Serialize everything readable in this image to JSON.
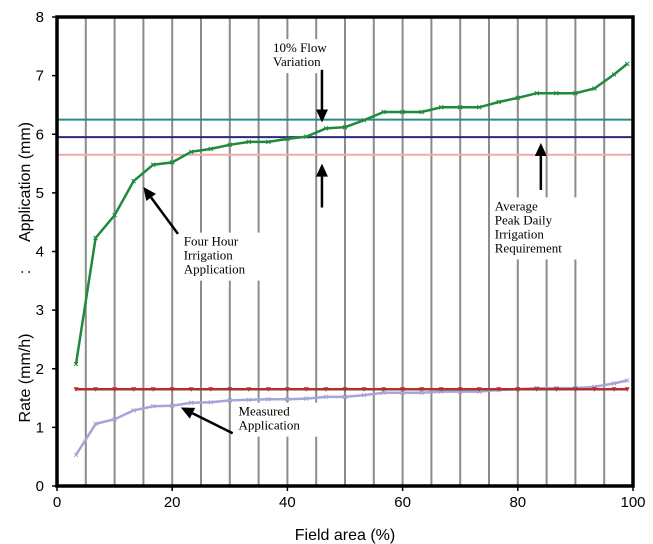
{
  "chart_data": {
    "type": "line",
    "title": "",
    "xlabel": "Field area (%)",
    "ylabel_top": "Application (mm)",
    "ylabel_separator": ":",
    "ylabel_bottom": "Rate (mm/h)",
    "xlim": [
      0,
      100
    ],
    "ylim": [
      0,
      8
    ],
    "x_ticks": [
      "0",
      "20",
      "40",
      "60",
      "80",
      "100"
    ],
    "y_ticks": [
      "0",
      "1",
      "2",
      "3",
      "4",
      "5",
      "6",
      "7",
      "8"
    ],
    "grid": "vertical lines every 5% field area",
    "series": [
      {
        "color": "#1f8a3c",
        "marker": "x",
        "x": [
          3.3,
          6.7,
          10,
          13.3,
          16.7,
          20,
          23.3,
          26.7,
          30,
          33.3,
          36.7,
          40,
          43.3,
          46.7,
          50,
          53.3,
          56.7,
          60,
          63.3,
          66.7,
          70,
          73.3,
          76.7,
          80,
          83.3,
          86.7,
          90,
          93.3,
          96.7,
          99
        ],
        "y": [
          2.08,
          4.23,
          4.62,
          5.2,
          5.48,
          5.52,
          5.7,
          5.75,
          5.82,
          5.87,
          5.87,
          5.92,
          5.96,
          6.1,
          6.12,
          6.24,
          6.38,
          6.38,
          6.38,
          6.46,
          6.46,
          6.46,
          6.55,
          6.62,
          6.7,
          6.7,
          6.7,
          6.78,
          7.02,
          7.2
        ]
      },
      {
        "color": "#a9a4d8",
        "marker": "x",
        "x": [
          3.3,
          6.7,
          10,
          13.3,
          16.7,
          20,
          23.3,
          26.7,
          30,
          33.3,
          36.7,
          40,
          43.3,
          46.7,
          50,
          53.3,
          56.7,
          60,
          63.3,
          66.7,
          70,
          73.3,
          76.7,
          80,
          83.3,
          86.7,
          90,
          93.3,
          96.7,
          99
        ],
        "y": [
          0.53,
          1.06,
          1.14,
          1.29,
          1.36,
          1.37,
          1.42,
          1.43,
          1.46,
          1.47,
          1.48,
          1.48,
          1.49,
          1.52,
          1.52,
          1.55,
          1.59,
          1.59,
          1.59,
          1.61,
          1.61,
          1.61,
          1.64,
          1.65,
          1.67,
          1.67,
          1.67,
          1.69,
          1.75,
          1.8
        ]
      },
      {
        "color": "#b03030",
        "marker": "triangle-down",
        "x": [
          3.3,
          6.7,
          10,
          13.3,
          16.7,
          20,
          23.3,
          26.7,
          30,
          33.3,
          36.7,
          40,
          43.3,
          46.7,
          50,
          53.3,
          56.7,
          60,
          63.3,
          66.7,
          70,
          73.3,
          76.7,
          80,
          83.3,
          86.7,
          90,
          93.3,
          96.7,
          99
        ],
        "y": [
          1.65,
          1.65,
          1.65,
          1.65,
          1.65,
          1.65,
          1.65,
          1.65,
          1.65,
          1.65,
          1.65,
          1.65,
          1.65,
          1.65,
          1.65,
          1.65,
          1.65,
          1.65,
          1.65,
          1.65,
          1.65,
          1.65,
          1.65,
          1.65,
          1.65,
          1.65,
          1.65,
          1.65,
          1.65,
          1.65
        ]
      }
    ],
    "hlines": [
      {
        "y": 6.25,
        "color": "#2a8a80"
      },
      {
        "y": 5.95,
        "color": "#2a2a7a"
      },
      {
        "y": 5.65,
        "color": "#f2aaaa"
      }
    ],
    "annotations": [
      {
        "lines": [
          "10% Flow",
          "Variation"
        ],
        "x": 37.5,
        "y": 7.4
      },
      {
        "lines": [
          "Average",
          "Peak Daily",
          "Irrigation",
          "Requirement"
        ],
        "x": 76,
        "y": 4.7
      },
      {
        "lines": [
          "Four Hour",
          "Irrigation",
          "Application"
        ],
        "x": 22,
        "y": 4.1
      },
      {
        "lines": [
          "Measured",
          "Application"
        ],
        "x": 31.5,
        "y": 1.2
      }
    ],
    "arrows": [
      {
        "from": [
          46,
          7.1
        ],
        "to": [
          46,
          6.2
        ]
      },
      {
        "from": [
          46,
          4.75
        ],
        "to": [
          46,
          5.5
        ]
      },
      {
        "from": [
          84,
          5.05
        ],
        "to": [
          84,
          5.85
        ]
      },
      {
        "from": [
          21,
          4.3
        ],
        "to": [
          15,
          5.1
        ]
      },
      {
        "from": [
          30.5,
          0.9
        ],
        "to": [
          21.5,
          1.34
        ]
      }
    ]
  }
}
